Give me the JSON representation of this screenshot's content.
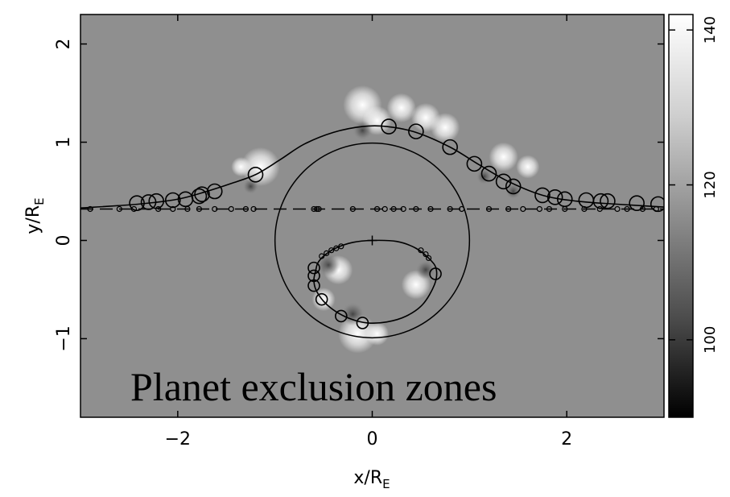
{
  "chart_data": {
    "type": "heatmap",
    "title": "",
    "xlabel": "x/R",
    "xlabel_sub": "E",
    "ylabel": "y/R",
    "ylabel_sub": "E",
    "xlim": [
      -3,
      3
    ],
    "ylim": [
      -1.8,
      2.3
    ],
    "xticks": [
      -2,
      0,
      2
    ],
    "xtick_labels": [
      "−2",
      "0",
      "2"
    ],
    "yticks": [
      -1,
      0,
      1,
      2
    ],
    "ytick_labels": [
      "−1",
      "0",
      "1",
      "2"
    ],
    "grid": false,
    "background_level": 115,
    "colorbar": {
      "range": [
        90,
        142
      ],
      "ticks": [
        100,
        120,
        140
      ],
      "tick_labels": [
        "100",
        "120",
        "140"
      ],
      "colormap": "grayscale (black low, white high)"
    },
    "circle": {
      "center": [
        0,
        0
      ],
      "radius": 1
    },
    "center_marker": [
      0,
      0
    ],
    "dashed_line_y": 0.32,
    "source_track": [
      [
        -3.0,
        0.33
      ],
      [
        -2.4,
        0.37
      ],
      [
        -2.0,
        0.42
      ],
      [
        -1.7,
        0.5
      ],
      [
        -1.45,
        0.58
      ],
      [
        -1.2,
        0.67
      ],
      [
        -0.95,
        0.82
      ],
      [
        -0.7,
        0.98
      ],
      [
        -0.4,
        1.1
      ],
      [
        -0.1,
        1.16
      ],
      [
        0.15,
        1.16
      ],
      [
        0.45,
        1.1
      ],
      [
        0.8,
        0.95
      ],
      [
        1.1,
        0.77
      ],
      [
        1.4,
        0.6
      ],
      [
        1.75,
        0.46
      ],
      [
        2.1,
        0.4
      ],
      [
        2.5,
        0.37
      ],
      [
        3.0,
        0.34
      ]
    ],
    "source_track_circles": [
      [
        -2.42,
        0.38
      ],
      [
        -2.3,
        0.39
      ],
      [
        -2.22,
        0.4
      ],
      [
        -2.05,
        0.41
      ],
      [
        -1.92,
        0.42
      ],
      [
        -1.78,
        0.45
      ],
      [
        -1.75,
        0.47
      ],
      [
        -1.62,
        0.5
      ],
      [
        -1.2,
        0.67
      ],
      [
        0.17,
        1.16
      ],
      [
        0.45,
        1.11
      ],
      [
        0.8,
        0.95
      ],
      [
        1.05,
        0.78
      ],
      [
        1.2,
        0.68
      ],
      [
        1.35,
        0.6
      ],
      [
        1.45,
        0.55
      ],
      [
        1.75,
        0.46
      ],
      [
        1.88,
        0.44
      ],
      [
        1.98,
        0.42
      ],
      [
        2.2,
        0.41
      ],
      [
        2.35,
        0.4
      ],
      [
        2.42,
        0.4
      ],
      [
        2.72,
        0.38
      ],
      [
        2.94,
        0.37
      ]
    ],
    "image_track": [
      [
        -0.58,
        -0.3
      ],
      [
        -0.6,
        -0.4
      ],
      [
        -0.58,
        -0.5
      ],
      [
        -0.5,
        -0.62
      ],
      [
        -0.38,
        -0.72
      ],
      [
        -0.22,
        -0.8
      ],
      [
        -0.05,
        -0.84
      ],
      [
        0.15,
        -0.83
      ],
      [
        0.35,
        -0.77
      ],
      [
        0.52,
        -0.65
      ],
      [
        0.64,
        -0.45
      ],
      [
        0.66,
        -0.3
      ],
      [
        0.6,
        -0.2
      ],
      [
        0.45,
        -0.08
      ],
      [
        0.25,
        -0.01
      ],
      [
        0.0,
        0.0
      ],
      [
        -0.2,
        -0.02
      ],
      [
        -0.38,
        -0.08
      ],
      [
        -0.5,
        -0.16
      ],
      [
        -0.56,
        -0.23
      ],
      [
        -0.58,
        -0.3
      ]
    ],
    "image_track_circles": [
      [
        -0.6,
        -0.28
      ],
      [
        -0.6,
        -0.36
      ],
      [
        -0.6,
        -0.46
      ],
      [
        -0.52,
        -0.6
      ],
      [
        -0.32,
        -0.77
      ],
      [
        -0.1,
        -0.84
      ],
      [
        0.65,
        -0.34
      ]
    ],
    "image_track_small_dots": [
      [
        -0.52,
        -0.16
      ],
      [
        -0.47,
        -0.13
      ],
      [
        -0.42,
        -0.1
      ],
      [
        -0.37,
        -0.08
      ],
      [
        -0.32,
        -0.06
      ],
      [
        0.5,
        -0.1
      ],
      [
        0.55,
        -0.14
      ],
      [
        0.58,
        -0.18
      ]
    ],
    "dashed_line_markers_x": [
      -2.9,
      -2.6,
      -2.45,
      -2.2,
      -2.05,
      -1.9,
      -1.78,
      -1.62,
      -1.45,
      -1.3,
      -1.22,
      -0.6,
      -0.57,
      -0.55,
      -0.2,
      0.05,
      0.13,
      0.22,
      0.32,
      0.45,
      0.6,
      0.8,
      0.92,
      1.2,
      1.4,
      1.55,
      1.72,
      1.82,
      1.98,
      2.18,
      2.34,
      2.52,
      2.62,
      2.78,
      2.92
    ],
    "bright_spots": [
      [
        -1.15,
        0.75,
        0.2
      ],
      [
        -1.35,
        0.75,
        0.1
      ],
      [
        -0.1,
        1.38,
        0.2
      ],
      [
        0.05,
        1.22,
        0.15
      ],
      [
        0.3,
        1.35,
        0.15
      ],
      [
        0.55,
        1.25,
        0.15
      ],
      [
        0.75,
        1.15,
        0.15
      ],
      [
        -0.35,
        -0.3,
        0.15
      ],
      [
        -0.5,
        -0.6,
        0.12
      ],
      [
        -0.15,
        -0.95,
        0.2
      ],
      [
        0.05,
        -0.95,
        0.12
      ],
      [
        0.45,
        -0.45,
        0.15
      ],
      [
        1.35,
        0.85,
        0.15
      ],
      [
        1.6,
        0.75,
        0.12
      ]
    ],
    "dark_spots": [
      [
        -0.1,
        1.12,
        0.1
      ],
      [
        -1.25,
        0.55,
        0.08
      ],
      [
        -0.45,
        -0.25,
        0.12
      ],
      [
        -0.2,
        -0.75,
        0.12
      ],
      [
        0.55,
        -0.3,
        0.1
      ],
      [
        1.15,
        0.65,
        0.08
      ],
      [
        1.45,
        0.5,
        0.08
      ]
    ],
    "annotation": "Planet exclusion zones"
  }
}
